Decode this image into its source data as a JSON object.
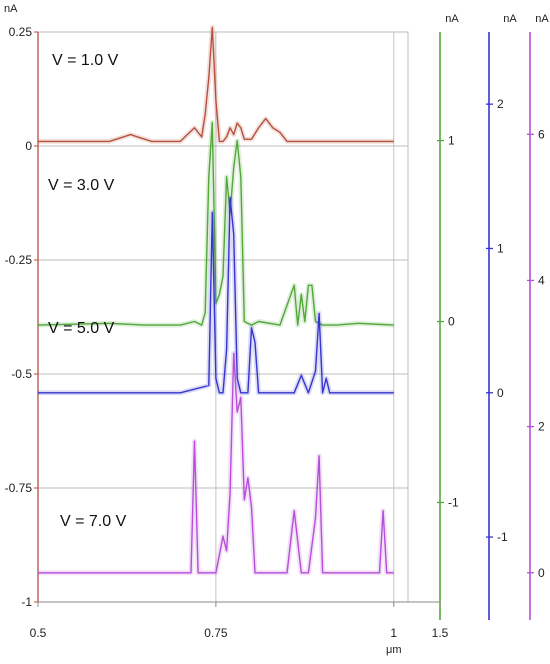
{
  "chart_data": {
    "type": "line",
    "title": "",
    "x_unit": "μm",
    "xlim": [
      0.5,
      1.02
    ],
    "x_ticks": [
      "0.5",
      "0.75",
      "1",
      "1.5"
    ],
    "grid": true,
    "axes": [
      {
        "id": "red",
        "unit": "nA",
        "color": "#b5513e",
        "ylim": [
          -1.0,
          0.25
        ],
        "ticks": [
          "0.25",
          "0",
          "-0.25",
          "-0.5",
          "-0.75",
          "-1"
        ]
      },
      {
        "id": "green",
        "unit": "nA",
        "color": "#52a83a",
        "ylim": [
          -1.55,
          1.6
        ],
        "ticks": [
          "1",
          "0",
          "-1"
        ]
      },
      {
        "id": "blue",
        "unit": "nA",
        "color": "#3535cf",
        "ylim": [
          -1.45,
          2.5
        ],
        "ticks": [
          "2",
          "1",
          "0",
          "-1"
        ]
      },
      {
        "id": "purple",
        "unit": "nA",
        "color": "#b54fd8",
        "ylim": [
          -0.4,
          7.4
        ],
        "ticks": [
          "6",
          "4",
          "2",
          "0"
        ]
      }
    ],
    "series": [
      {
        "name": "V = 1.0 V",
        "axis": "red",
        "color": "#b5513e",
        "x": [
          0.5,
          0.6,
          0.62,
          0.63,
          0.64,
          0.66,
          0.7,
          0.72,
          0.73,
          0.735,
          0.74,
          0.745,
          0.75,
          0.755,
          0.76,
          0.765,
          0.77,
          0.775,
          0.78,
          0.785,
          0.79,
          0.8,
          0.81,
          0.82,
          0.83,
          0.84,
          0.85,
          0.86,
          0.88,
          1.0
        ],
        "y": [
          0.01,
          0.01,
          0.02,
          0.025,
          0.02,
          0.01,
          0.01,
          0.04,
          0.02,
          0.07,
          0.15,
          0.26,
          0.1,
          0.01,
          0.01,
          0.02,
          0.04,
          0.025,
          0.05,
          0.04,
          0.015,
          0.015,
          0.04,
          0.06,
          0.04,
          0.03,
          0.01,
          0.01,
          0.01,
          0.01
        ]
      },
      {
        "name": "V = 3.0 V",
        "axis": "green",
        "color": "#52a83a",
        "x": [
          0.5,
          0.6,
          0.65,
          0.7,
          0.72,
          0.73,
          0.735,
          0.74,
          0.745,
          0.75,
          0.755,
          0.76,
          0.765,
          0.77,
          0.775,
          0.78,
          0.785,
          0.79,
          0.8,
          0.81,
          0.84,
          0.86,
          0.865,
          0.87,
          0.875,
          0.88,
          0.885,
          0.89,
          0.9,
          0.92,
          0.95,
          1.0
        ],
        "y": [
          -0.02,
          -0.01,
          -0.02,
          -0.02,
          0.0,
          -0.02,
          0.05,
          0.8,
          1.1,
          0.1,
          0.15,
          0.25,
          0.8,
          0.6,
          0.85,
          1.0,
          0.8,
          0.0,
          -0.02,
          0.0,
          -0.02,
          0.2,
          -0.02,
          0.15,
          0.0,
          0.2,
          0.2,
          0.0,
          -0.02,
          -0.02,
          -0.01,
          -0.02
        ]
      },
      {
        "name": "V = 5.0 V",
        "axis": "blue",
        "color": "#3535cf",
        "x": [
          0.5,
          0.6,
          0.7,
          0.74,
          0.745,
          0.75,
          0.755,
          0.76,
          0.765,
          0.77,
          0.775,
          0.78,
          0.785,
          0.79,
          0.795,
          0.8,
          0.805,
          0.81,
          0.82,
          0.84,
          0.86,
          0.87,
          0.88,
          0.89,
          0.895,
          0.9,
          0.905,
          0.91,
          0.93,
          0.95,
          0.97,
          1.0
        ],
        "y": [
          0.0,
          0.0,
          0.0,
          0.05,
          1.25,
          0.1,
          0.0,
          0.0,
          0.3,
          1.35,
          1.1,
          0.1,
          0.0,
          0.0,
          0.0,
          0.45,
          0.35,
          0.0,
          0.0,
          0.0,
          0.0,
          0.12,
          0.0,
          0.15,
          0.55,
          0.0,
          0.1,
          0.0,
          0.0,
          0.0,
          0.0,
          0.0
        ]
      },
      {
        "name": "V = 7.0 V",
        "axis": "purple",
        "color": "#b54fd8",
        "x": [
          0.5,
          0.6,
          0.7,
          0.715,
          0.72,
          0.725,
          0.74,
          0.75,
          0.76,
          0.765,
          0.77,
          0.775,
          0.78,
          0.785,
          0.79,
          0.795,
          0.8,
          0.805,
          0.81,
          0.82,
          0.85,
          0.86,
          0.87,
          0.88,
          0.89,
          0.895,
          0.9,
          0.91,
          0.95,
          0.97,
          0.98,
          0.985,
          0.99,
          1.0
        ],
        "y": [
          0.0,
          0.0,
          0.0,
          0.0,
          1.8,
          0.0,
          0.0,
          0.0,
          0.5,
          0.3,
          1.1,
          3.0,
          2.2,
          2.4,
          1.0,
          1.3,
          0.9,
          0.0,
          0.0,
          0.0,
          0.0,
          0.85,
          0.0,
          0.0,
          0.75,
          1.6,
          0.0,
          0.0,
          0.0,
          0.0,
          0.0,
          0.85,
          0.0,
          0.0
        ]
      }
    ],
    "annotations": [
      "V = 1.0 V",
      "V = 3.0 V",
      "V = 5.0 V",
      "V = 7.0 V"
    ]
  }
}
